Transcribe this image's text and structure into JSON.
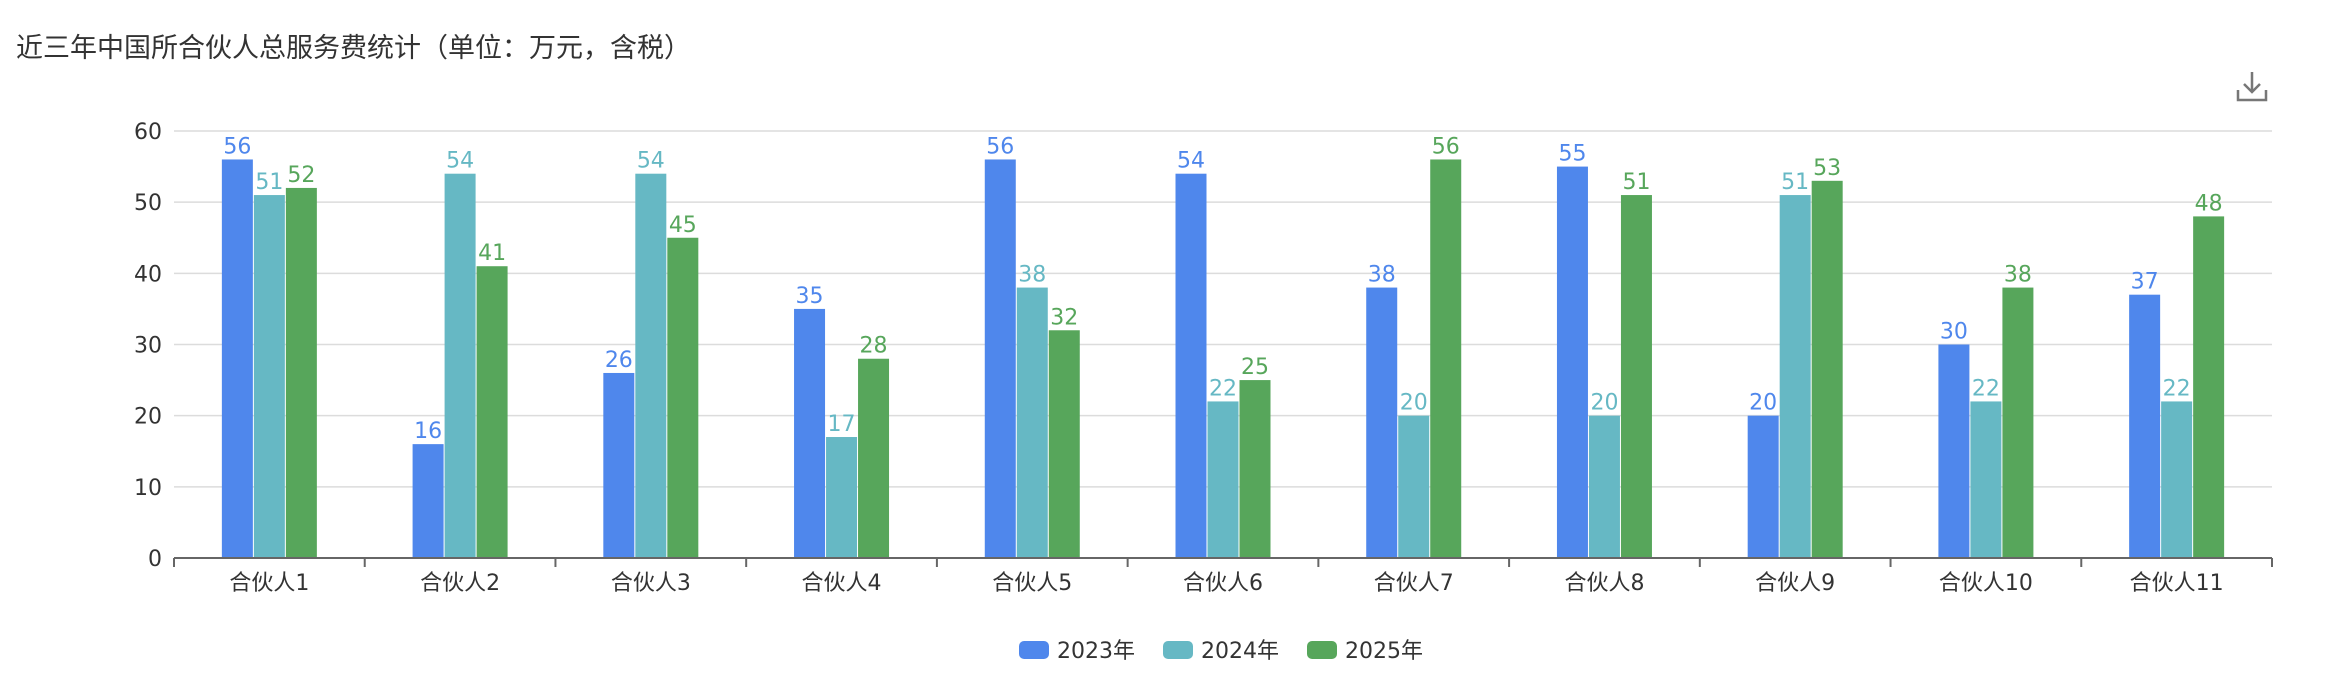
{
  "title": "近三年中国所合伙人总服务费统计（单位：万元，含税）",
  "toolbar": {
    "download_icon": "download-icon"
  },
  "colors": {
    "2023年": "#4f87ec",
    "2024年": "#66b8c4",
    "2025年": "#57a65b",
    "grid": "#dcdcdc",
    "axis": "#666666"
  },
  "chart_data": {
    "type": "bar",
    "title": "近三年中国所合伙人总服务费统计（单位：万元，含税）",
    "categories": [
      "合伙人1",
      "合伙人2",
      "合伙人3",
      "合伙人4",
      "合伙人5",
      "合伙人6",
      "合伙人7",
      "合伙人8",
      "合伙人9",
      "合伙人10",
      "合伙人11"
    ],
    "series": [
      {
        "name": "2023年",
        "values": [
          56,
          16,
          26,
          35,
          56,
          54,
          38,
          55,
          20,
          30,
          37
        ]
      },
      {
        "name": "2024年",
        "values": [
          51,
          54,
          54,
          17,
          38,
          22,
          20,
          20,
          51,
          22,
          22
        ]
      },
      {
        "name": "2025年",
        "values": [
          52,
          41,
          45,
          28,
          32,
          25,
          56,
          51,
          53,
          38,
          48
        ]
      }
    ],
    "ylim": [
      0,
      60
    ],
    "yticks": [
      0,
      10,
      20,
      30,
      40,
      50,
      60
    ],
    "grid": true,
    "legend": "bottom-center"
  }
}
